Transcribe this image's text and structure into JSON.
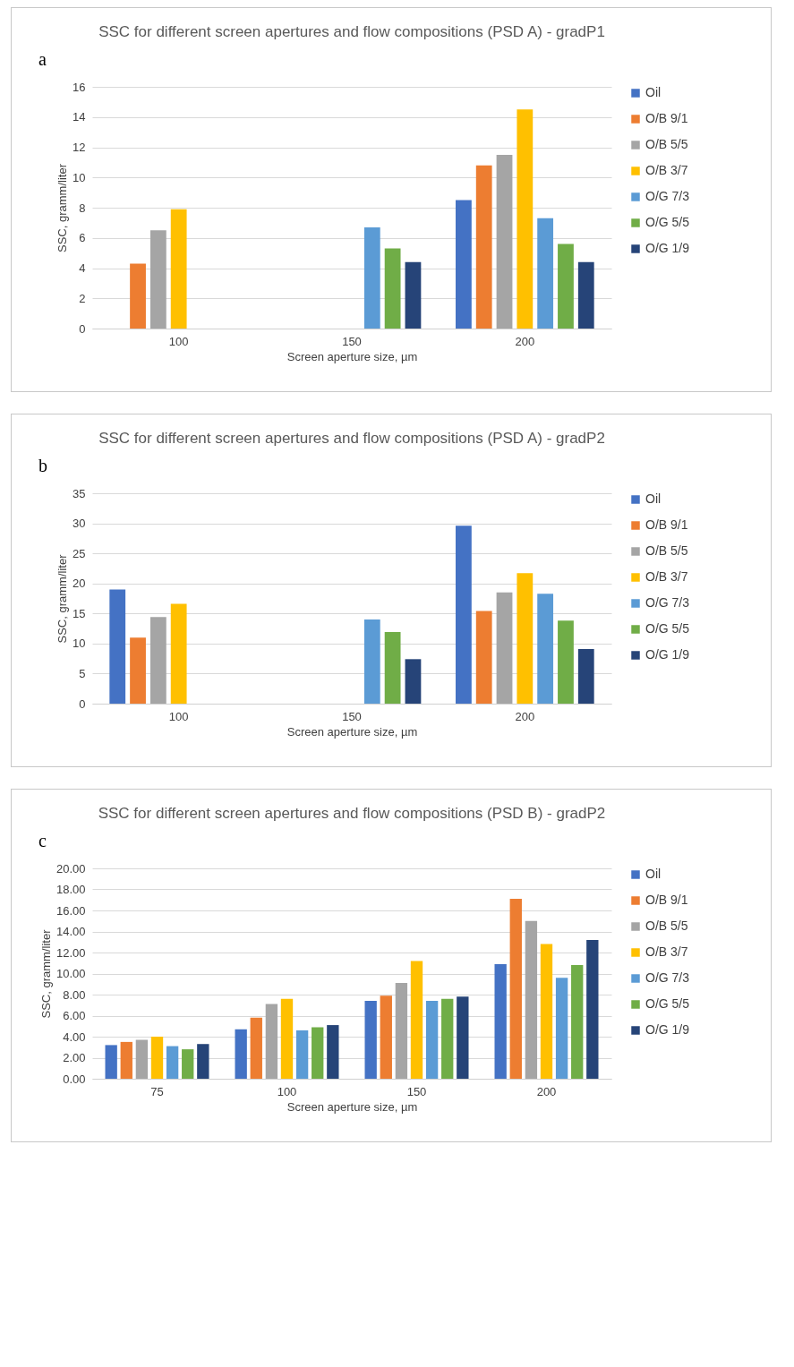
{
  "chart_data": [
    {
      "type": "bar",
      "title": "SSC for different screen apertures and flow compositions (PSD A) - gradP1",
      "xlabel": "Screen aperture size, µm",
      "ylabel": "SSC, gramm/liter",
      "annotations": [
        "a"
      ],
      "categories": [
        "100",
        "150",
        "200"
      ],
      "ylim": [
        0,
        16
      ],
      "yticks": [
        0,
        2,
        4,
        6,
        8,
        10,
        12,
        14,
        16
      ],
      "grid": "y",
      "legend": "right",
      "series": [
        {
          "name": "Oil",
          "color": "#4472c4",
          "values": [
            null,
            null,
            8.5
          ]
        },
        {
          "name": "O/B 9/1",
          "color": "#ed7d31",
          "values": [
            4.3,
            null,
            10.8
          ]
        },
        {
          "name": "O/B 5/5",
          "color": "#a5a5a5",
          "values": [
            6.5,
            null,
            11.5
          ]
        },
        {
          "name": "O/B 3/7",
          "color": "#ffc000",
          "values": [
            7.9,
            null,
            14.5
          ]
        },
        {
          "name": "O/G 7/3",
          "color": "#5b9bd5",
          "values": [
            null,
            6.7,
            7.3
          ]
        },
        {
          "name": "O/G 5/5",
          "color": "#70ad47",
          "values": [
            null,
            5.3,
            5.6
          ]
        },
        {
          "name": "O/G 1/9",
          "color": "#264478",
          "values": [
            null,
            4.4,
            4.4
          ]
        }
      ]
    },
    {
      "type": "bar",
      "title": "SSC for different screen apertures and flow compositions (PSD A) - gradP2",
      "xlabel": "Screen aperture size, µm",
      "ylabel": "SSC, gramm/liter",
      "annotations": [
        "b"
      ],
      "categories": [
        "100",
        "150",
        "200"
      ],
      "ylim": [
        0,
        35
      ],
      "yticks": [
        0,
        5,
        10,
        15,
        20,
        25,
        30,
        35
      ],
      "grid": "y",
      "legend": "right",
      "series": [
        {
          "name": "Oil",
          "color": "#4472c4",
          "values": [
            19,
            null,
            29.6
          ]
        },
        {
          "name": "O/B 9/1",
          "color": "#ed7d31",
          "values": [
            11,
            null,
            15.4
          ]
        },
        {
          "name": "O/B 5/5",
          "color": "#a5a5a5",
          "values": [
            14.4,
            null,
            18.5
          ]
        },
        {
          "name": "O/B 3/7",
          "color": "#ffc000",
          "values": [
            16.6,
            null,
            21.7
          ]
        },
        {
          "name": "O/G 7/3",
          "color": "#5b9bd5",
          "values": [
            null,
            14,
            18.3
          ]
        },
        {
          "name": "O/G 5/5",
          "color": "#70ad47",
          "values": [
            null,
            11.9,
            13.8
          ]
        },
        {
          "name": "O/G 1/9",
          "color": "#264478",
          "values": [
            null,
            7.4,
            9.1
          ]
        }
      ]
    },
    {
      "type": "bar",
      "title": "SSC for different screen apertures and flow compositions (PSD B) - gradP2",
      "xlabel": "Screen aperture size, µm",
      "ylabel": "SSC, gramm/liter",
      "annotations": [
        "c"
      ],
      "categories": [
        "75",
        "100",
        "150",
        "200"
      ],
      "ylim": [
        0,
        20
      ],
      "yticks": [
        {
          "value": 0,
          "label": "0.00"
        },
        {
          "value": 2,
          "label": "2.00"
        },
        {
          "value": 4,
          "label": "4.00"
        },
        {
          "value": 6,
          "label": "6.00"
        },
        {
          "value": 8,
          "label": "8.00"
        },
        {
          "value": 10,
          "label": "10.00"
        },
        {
          "value": 12,
          "label": "12.00"
        },
        {
          "value": 14,
          "label": "14.00"
        },
        {
          "value": 16,
          "label": "16.00"
        },
        {
          "value": 18,
          "label": "18.00"
        },
        {
          "value": 20,
          "label": "20.00"
        }
      ],
      "grid": "y",
      "legend": "right",
      "series": [
        {
          "name": "Oil",
          "color": "#4472c4",
          "values": [
            3.2,
            4.7,
            7.4,
            10.9
          ]
        },
        {
          "name": "O/B 9/1",
          "color": "#ed7d31",
          "values": [
            3.5,
            5.8,
            7.9,
            17.1
          ]
        },
        {
          "name": "O/B 5/5",
          "color": "#a5a5a5",
          "values": [
            3.7,
            7.1,
            9.1,
            15.0
          ]
        },
        {
          "name": "O/B 3/7",
          "color": "#ffc000",
          "values": [
            4.0,
            7.6,
            11.2,
            12.8
          ]
        },
        {
          "name": "O/G 7/3",
          "color": "#5b9bd5",
          "values": [
            3.1,
            4.6,
            7.4,
            9.6
          ]
        },
        {
          "name": "O/G 5/5",
          "color": "#70ad47",
          "values": [
            2.8,
            4.9,
            7.6,
            10.8
          ]
        },
        {
          "name": "O/G 1/9",
          "color": "#264478",
          "values": [
            3.3,
            5.1,
            7.8,
            13.2
          ]
        }
      ]
    }
  ]
}
